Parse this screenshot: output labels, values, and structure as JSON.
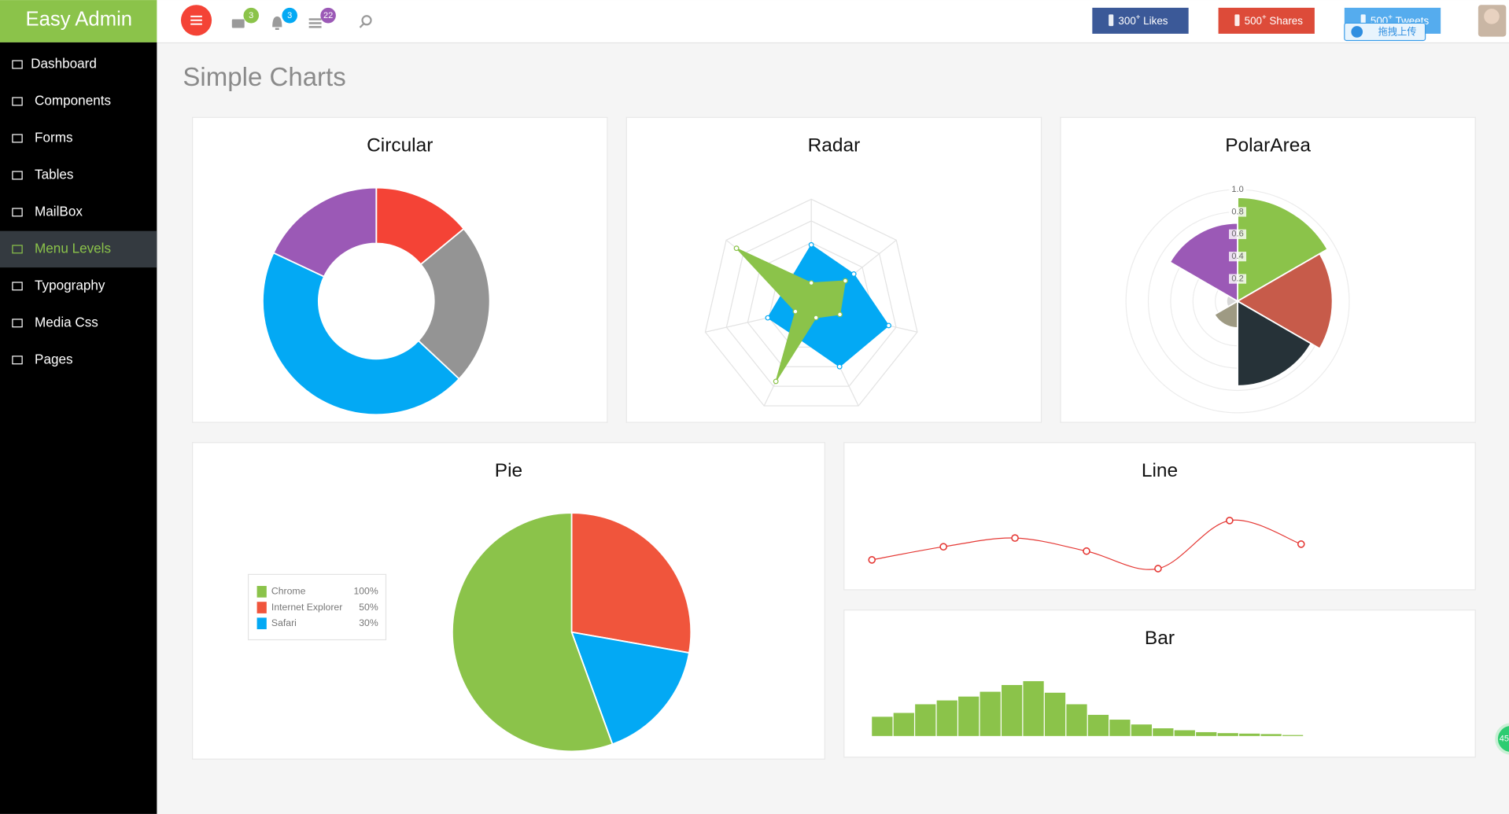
{
  "brand": "Easy Admin",
  "header": {
    "badges": [
      {
        "value": 3,
        "color": "#8bc34a"
      },
      {
        "value": 3,
        "color": "#03a9f4"
      },
      {
        "value": 22,
        "color": "#9b59b6"
      }
    ],
    "buttons": [
      {
        "count": "300",
        "sup": "+",
        "label": "Likes",
        "color": "#3b5998"
      },
      {
        "count": "500",
        "sup": "+",
        "label": "Shares",
        "color": "#dd4b39"
      },
      {
        "count": "500",
        "sup": "+",
        "label": "Tweets",
        "color": "#55acee"
      }
    ],
    "upload": "拖拽上传"
  },
  "menu": {
    "items": [
      "Dashboard",
      "Components",
      "Forms",
      "Tables",
      "MailBox",
      "Menu Levels",
      "Typography",
      "Media Css",
      "Pages"
    ],
    "active": 5
  },
  "page_title": "Simple Charts",
  "float_badge": "45",
  "chart_data": [
    {
      "type": "doughnut",
      "title": "Circular",
      "values": [
        14,
        23,
        45,
        18
      ],
      "colors": [
        "#f44336",
        "#949494",
        "#03a9f4",
        "#9b59b6"
      ]
    },
    {
      "type": "radar",
      "title": "Radar",
      "ylim": [
        0,
        100
      ],
      "series": [
        {
          "color": "#03a9f4",
          "values": [
            58,
            50,
            73,
            60,
            30,
            41,
            30
          ]
        },
        {
          "color": "#8bc34a",
          "values": [
            23,
            40,
            27,
            10,
            75,
            15,
            88
          ]
        }
      ]
    },
    {
      "type": "polarArea",
      "title": "PolarArea",
      "values": [
        0.93,
        0.85,
        0.76,
        0.24,
        0.1,
        0.7
      ],
      "colors": [
        "#8bc34a",
        "#c75b4a",
        "#263238",
        "#9e9a83",
        "#d8d8d8",
        "#9b59b6"
      ],
      "ylim": [
        0,
        1
      ],
      "yticks": [
        0.2,
        0.4,
        0.6,
        0.8,
        {
          "value": 1,
          "label": "1.0"
        }
      ]
    },
    {
      "type": "pie",
      "title": "Pie",
      "categories": [
        "Chrome",
        "Internet Explorer",
        "Safari"
      ],
      "values": [
        100,
        50,
        30
      ],
      "value_labels": [
        "100%",
        "50%",
        "30%"
      ],
      "colors": [
        "#8bc34a",
        "#f0553c",
        "#03a9f4"
      ],
      "legend": "left"
    },
    {
      "type": "line",
      "title": "Line",
      "values": [
        30,
        45,
        55,
        40,
        20,
        75,
        48
      ],
      "color": "#e53935"
    },
    {
      "type": "bar",
      "title": "Bar",
      "values": [
        20,
        24,
        33,
        37,
        41,
        46,
        53,
        57,
        45,
        33,
        22,
        17,
        12,
        8,
        6,
        4,
        3,
        2.5,
        2,
        1
      ],
      "color": "#8bc34a"
    }
  ]
}
